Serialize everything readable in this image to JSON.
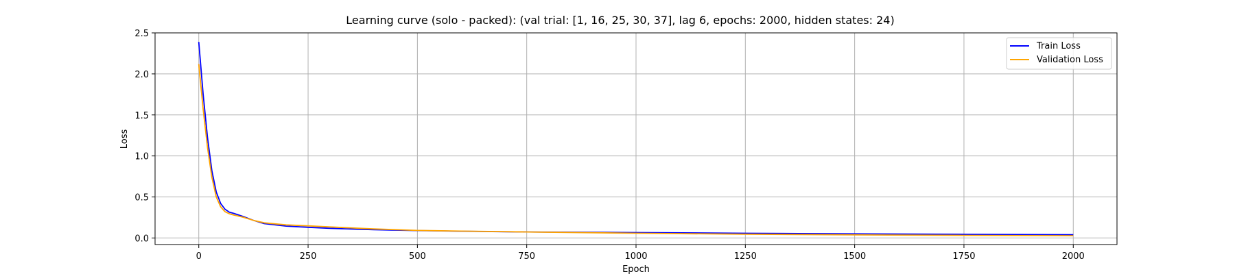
{
  "chart_data": {
    "type": "line",
    "title": "Learning curve (solo - packed): (val trial: [1, 16, 25, 30, 37], lag 6, epochs: 2000, hidden states: 24)",
    "xlabel": "Epoch",
    "ylabel": "Loss",
    "xlim": [
      -100,
      2100
    ],
    "ylim": [
      -0.08,
      2.5
    ],
    "xticks": [
      0,
      250,
      500,
      750,
      1000,
      1250,
      1500,
      1750,
      2000
    ],
    "yticks": [
      0.0,
      0.5,
      1.0,
      1.5,
      2.0,
      2.5
    ],
    "xtick_labels": [
      "0",
      "250",
      "500",
      "750",
      "1000",
      "1250",
      "1500",
      "1750",
      "2000"
    ],
    "ytick_labels": [
      "0.0",
      "0.5",
      "1.0",
      "1.5",
      "2.0",
      "2.5"
    ],
    "grid": true,
    "legend_position": "top-right",
    "series": [
      {
        "name": "Train Loss",
        "color": "#0000ff",
        "x": [
          0,
          10,
          20,
          30,
          40,
          50,
          60,
          70,
          80,
          100,
          125,
          150,
          200,
          250,
          300,
          400,
          500,
          600,
          750,
          1000,
          1250,
          1500,
          1750,
          2000
        ],
        "y": [
          2.39,
          1.75,
          1.22,
          0.82,
          0.56,
          0.42,
          0.35,
          0.315,
          0.3,
          0.265,
          0.215,
          0.175,
          0.145,
          0.13,
          0.118,
          0.1,
          0.09,
          0.082,
          0.074,
          0.066,
          0.058,
          0.05,
          0.044,
          0.04
        ]
      },
      {
        "name": "Validation Loss",
        "color": "#ffa500",
        "x": [
          0,
          10,
          20,
          30,
          40,
          50,
          60,
          70,
          80,
          100,
          125,
          150,
          200,
          250,
          300,
          400,
          500,
          600,
          750,
          1000,
          1250,
          1500,
          1750,
          2000
        ],
        "y": [
          2.12,
          1.57,
          1.1,
          0.74,
          0.5,
          0.38,
          0.32,
          0.295,
          0.28,
          0.255,
          0.215,
          0.185,
          0.16,
          0.148,
          0.135,
          0.11,
          0.092,
          0.084,
          0.074,
          0.058,
          0.046,
          0.038,
          0.032,
          0.028
        ]
      }
    ]
  }
}
